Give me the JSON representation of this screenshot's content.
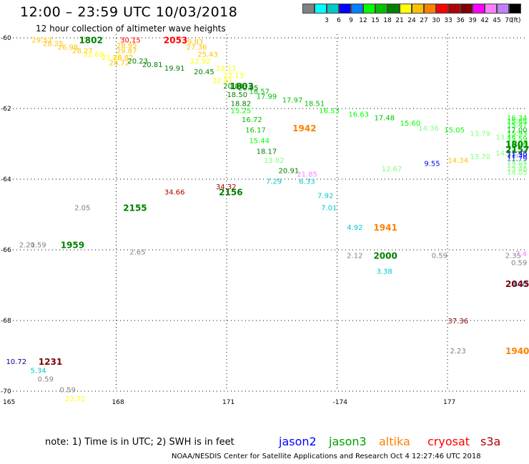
{
  "header": {
    "title": "12:00 – 23:59 UTC 10/03/2018",
    "subtitle": "12 hour collection of altimeter wave heights"
  },
  "scale": {
    "colors": [
      "#808080",
      "#00ffff",
      "#00c8c8",
      "#0000ff",
      "#0080ff",
      "#00ff00",
      "#00c000",
      "#008000",
      "#ffff00",
      "#ffc000",
      "#ff8000",
      "#ff0000",
      "#b00000",
      "#800000",
      "#ff00ff",
      "#ff80ff",
      "#c080ff",
      "#000000"
    ],
    "labels": [
      "",
      "3",
      "6",
      "9",
      "12",
      "15",
      "18",
      "21",
      "24",
      "27",
      "30",
      "33",
      "36",
      "39",
      "42",
      "45",
      "70"
    ],
    "unit": "(ft)"
  },
  "axes": {
    "x_ticks": [
      "165",
      "168",
      "171",
      "-174",
      "177"
    ],
    "y_ticks": [
      "-60",
      "-62",
      "-64",
      "-66",
      "-68",
      "-70"
    ]
  },
  "chart_data": {
    "type": "scatter",
    "plot_range": {
      "lon": [
        165,
        181.5
      ],
      "lat": [
        -70,
        -59.9
      ]
    },
    "grid": true,
    "labels": [
      {
        "lon": 166.0,
        "lat": -60.05,
        "text": "29.57",
        "color": "#ffc000"
      },
      {
        "lon": 166.3,
        "lat": -60.15,
        "text": "28.25",
        "color": "#ffc000"
      },
      {
        "lon": 166.7,
        "lat": -60.25,
        "text": "26.98",
        "color": "#ffc000"
      },
      {
        "lon": 167.1,
        "lat": -60.35,
        "text": "28.27",
        "color": "#ffc000"
      },
      {
        "lon": 167.4,
        "lat": -60.45,
        "text": "22.69",
        "color": "#ffff00"
      },
      {
        "lon": 167.9,
        "lat": -60.55,
        "text": "21.62",
        "color": "#ffff00"
      },
      {
        "lon": 168.1,
        "lat": -60.7,
        "text": "28.72",
        "color": "#ffc000"
      },
      {
        "lon": 168.2,
        "lat": -60.55,
        "text": "26.82",
        "color": "#ffc000"
      },
      {
        "lon": 168.3,
        "lat": -60.35,
        "text": "29.87",
        "color": "#ffc000"
      },
      {
        "lon": 168.3,
        "lat": -60.2,
        "text": "28.95",
        "color": "#ffc000"
      },
      {
        "lon": 168.4,
        "lat": -60.05,
        "text": "30.15",
        "color": "#ff0000"
      },
      {
        "lon": 168.6,
        "lat": -60.65,
        "text": "20.23",
        "color": "#008000"
      },
      {
        "lon": 169.0,
        "lat": -60.75,
        "text": "20.81",
        "color": "#008000"
      },
      {
        "lon": 169.6,
        "lat": -60.85,
        "text": "19.91",
        "color": "#008000"
      },
      {
        "lon": 170.2,
        "lat": -60.25,
        "text": "27.36",
        "color": "#ffc000"
      },
      {
        "lon": 170.1,
        "lat": -60.1,
        "text": "29.83",
        "color": "#ffc000"
      },
      {
        "lon": 170.5,
        "lat": -60.45,
        "text": "25.43",
        "color": "#ffc000"
      },
      {
        "lon": 170.3,
        "lat": -60.65,
        "text": "22.92",
        "color": "#ffff00"
      },
      {
        "lon": 170.4,
        "lat": -60.95,
        "text": "20.45",
        "color": "#008000"
      },
      {
        "lon": 171.0,
        "lat": -60.85,
        "text": "23.11",
        "color": "#ffff00"
      },
      {
        "lon": 170.9,
        "lat": -61.2,
        "text": "22.01",
        "color": "#ffff00"
      },
      {
        "lon": 171.2,
        "lat": -61.05,
        "text": "22.13",
        "color": "#ffff00"
      },
      {
        "lon": 171.2,
        "lat": -61.35,
        "text": "20.81",
        "color": "#008000"
      },
      {
        "lon": 171.6,
        "lat": -61.4,
        "text": "20.95",
        "color": "#008000"
      },
      {
        "lon": 171.9,
        "lat": -61.5,
        "text": "18.57",
        "color": "#00c000"
      },
      {
        "lon": 171.3,
        "lat": -61.6,
        "text": "18.50",
        "color": "#008000"
      },
      {
        "lon": 172.1,
        "lat": -61.65,
        "text": "17.99",
        "color": "#00c000"
      },
      {
        "lon": 172.8,
        "lat": -61.75,
        "text": "17.97",
        "color": "#00c000"
      },
      {
        "lon": 171.4,
        "lat": -61.85,
        "text": "18.82",
        "color": "#008000"
      },
      {
        "lon": 173.4,
        "lat": -61.85,
        "text": "18.51",
        "color": "#00c000"
      },
      {
        "lon": 171.4,
        "lat": -62.05,
        "text": "15.25",
        "color": "#00ff00"
      },
      {
        "lon": 173.8,
        "lat": -62.05,
        "text": "16.53",
        "color": "#00ff00"
      },
      {
        "lon": 174.6,
        "lat": -62.15,
        "text": "16.63",
        "color": "#00ff00"
      },
      {
        "lon": 171.7,
        "lat": -62.3,
        "text": "16.72",
        "color": "#00c000"
      },
      {
        "lon": 175.3,
        "lat": -62.25,
        "text": "17.48",
        "color": "#00c000"
      },
      {
        "lon": 176.0,
        "lat": -62.4,
        "text": "15.60",
        "color": "#00ff00"
      },
      {
        "lon": 171.8,
        "lat": -62.6,
        "text": "16.17",
        "color": "#00c000"
      },
      {
        "lon": 176.5,
        "lat": -62.55,
        "text": "14.36",
        "color": "#80ff80"
      },
      {
        "lon": 177.2,
        "lat": -62.6,
        "text": "15.05",
        "color": "#00ff00"
      },
      {
        "lon": 171.9,
        "lat": -62.9,
        "text": "15.44",
        "color": "#00ff00"
      },
      {
        "lon": 177.9,
        "lat": -62.7,
        "text": "13.79",
        "color": "#80ff80"
      },
      {
        "lon": 178.6,
        "lat": -62.8,
        "text": "13.45",
        "color": "#80ff80"
      },
      {
        "lon": 172.1,
        "lat": -63.2,
        "text": "18.17",
        "color": "#008000"
      },
      {
        "lon": 179.2,
        "lat": -62.95,
        "text": "12.62",
        "color": "#80ff80"
      },
      {
        "lon": 179.8,
        "lat": -63.05,
        "text": "12.60",
        "color": "#80ff80"
      },
      {
        "lon": 172.3,
        "lat": -63.45,
        "text": "13.82",
        "color": "#80ff80"
      },
      {
        "lon": 178.6,
        "lat": -63.25,
        "text": "14.30",
        "color": "#80ff80"
      },
      {
        "lon": 179.2,
        "lat": -63.15,
        "text": "14.37",
        "color": "#80ff80"
      },
      {
        "lon": 177.9,
        "lat": -63.35,
        "text": "13.70",
        "color": "#80ff80"
      },
      {
        "lon": 177.3,
        "lat": -63.45,
        "text": "14.34",
        "color": "#ffc000"
      },
      {
        "lon": 176.6,
        "lat": -63.55,
        "text": "9.55",
        "color": "#0000ff"
      },
      {
        "lon": 175.5,
        "lat": -63.7,
        "text": "12.67",
        "color": "#80ff80"
      },
      {
        "lon": 172.7,
        "lat": -63.75,
        "text": "20.91",
        "color": "#008000"
      },
      {
        "lon": 173.2,
        "lat": -63.85,
        "text": "21.85",
        "color": "#ff80ff"
      },
      {
        "lon": 180.0,
        "lat": -63.05,
        "text": "13.43",
        "color": "#80ff80"
      },
      {
        "lon": 180.5,
        "lat": -63.0,
        "text": "15.05",
        "color": "#00ff00"
      },
      {
        "lon": 180.9,
        "lat": -62.85,
        "text": "15.59",
        "color": "#00ff00"
      },
      {
        "lon": 181.3,
        "lat": -62.7,
        "text": "15.93",
        "color": "#00ff00"
      },
      {
        "lon": 181.8,
        "lat": -62.6,
        "text": "17.00",
        "color": "#00c000"
      },
      {
        "lon": 182.4,
        "lat": -62.45,
        "text": "15.47",
        "color": "#00ff00"
      },
      {
        "lon": 182.9,
        "lat": -62.35,
        "text": "15.85",
        "color": "#00ff00"
      },
      {
        "lon": 183.3,
        "lat": -62.25,
        "text": "16.34",
        "color": "#00ff00"
      },
      {
        "lon": 180.2,
        "lat": -63.25,
        "text": "11.48",
        "color": "#0000ff"
      },
      {
        "lon": 180.6,
        "lat": -63.3,
        "text": "11.30",
        "color": "#0000ff"
      },
      {
        "lon": 181.0,
        "lat": -63.4,
        "text": "11.79",
        "color": "#0000ff"
      },
      {
        "lon": 181.5,
        "lat": -63.5,
        "text": "13.05",
        "color": "#80ff80"
      },
      {
        "lon": 182.1,
        "lat": -63.6,
        "text": "12.92",
        "color": "#80ff80"
      },
      {
        "lon": 182.6,
        "lat": -63.7,
        "text": "13.46",
        "color": "#80ff80"
      },
      {
        "lon": 183.1,
        "lat": -63.8,
        "text": "14.05",
        "color": "#80ff80"
      },
      {
        "lon": 172.3,
        "lat": -64.05,
        "text": "7.29",
        "color": "#00c8c8"
      },
      {
        "lon": 173.2,
        "lat": -64.05,
        "text": "6.33",
        "color": "#00c8c8"
      },
      {
        "lon": 171.0,
        "lat": -64.2,
        "text": "34.32",
        "color": "#b00000"
      },
      {
        "lon": 169.6,
        "lat": -64.35,
        "text": "34.66",
        "color": "#b00000"
      },
      {
        "lon": 173.7,
        "lat": -64.45,
        "text": "7.92",
        "color": "#00c8c8"
      },
      {
        "lon": 173.8,
        "lat": -64.8,
        "text": "7.01",
        "color": "#00c8c8"
      },
      {
        "lon": 167.1,
        "lat": -64.8,
        "text": "2.05",
        "color": "#808080"
      },
      {
        "lon": 174.5,
        "lat": -65.35,
        "text": "4.92",
        "color": "#00c8c8"
      },
      {
        "lon": 165.6,
        "lat": -65.85,
        "text": "2.21",
        "color": "#808080"
      },
      {
        "lon": 165.9,
        "lat": -65.85,
        "text": "0.59",
        "color": "#808080"
      },
      {
        "lon": 168.6,
        "lat": -66.05,
        "text": "2.65",
        "color": "#808080"
      },
      {
        "lon": 174.5,
        "lat": -66.15,
        "text": "2.12",
        "color": "#808080"
      },
      {
        "lon": 176.8,
        "lat": -66.15,
        "text": "0.59",
        "color": "#808080"
      },
      {
        "lon": 178.8,
        "lat": -66.15,
        "text": "2.35",
        "color": "#808080"
      },
      {
        "lon": 180.5,
        "lat": -66.1,
        "text": "7.4",
        "color": "#ff80ff"
      },
      {
        "lon": 180.2,
        "lat": -66.35,
        "text": "0.59",
        "color": "#808080"
      },
      {
        "lon": 175.3,
        "lat": -66.6,
        "text": "3.38",
        "color": "#00c8c8"
      },
      {
        "lon": 179.1,
        "lat": -66.95,
        "text": "8.00",
        "color": "#0080ff"
      },
      {
        "lon": 177.3,
        "lat": -68.0,
        "text": "37.36",
        "color": "#800000"
      },
      {
        "lon": 177.3,
        "lat": -68.85,
        "text": "2.23",
        "color": "#808080"
      },
      {
        "lon": 165.3,
        "lat": -69.15,
        "text": "10.72",
        "color": "#000080"
      },
      {
        "lon": 165.9,
        "lat": -69.4,
        "text": "5.34",
        "color": "#00c8c8"
      },
      {
        "lon": 166.1,
        "lat": -69.65,
        "text": "0.59",
        "color": "#808080"
      },
      {
        "lon": 166.7,
        "lat": -69.95,
        "text": "0.59",
        "color": "#808080"
      },
      {
        "lon": 166.9,
        "lat": -70.2,
        "text": "23.72",
        "color": "#ffff00"
      }
    ],
    "times": [
      {
        "lon": 167.3,
        "lat": -60.05,
        "text": "1802",
        "color": "#008000"
      },
      {
        "lon": 169.6,
        "lat": -60.05,
        "text": "2053",
        "color": "#ff0000"
      },
      {
        "lon": 171.4,
        "lat": -61.35,
        "text": "1803",
        "color": "#008000"
      },
      {
        "lon": 173.1,
        "lat": -62.55,
        "text": "1942",
        "color": "#ff8000"
      },
      {
        "lon": 180.0,
        "lat": -63.0,
        "text": "1801",
        "color": "#008000"
      },
      {
        "lon": 180.7,
        "lat": -63.15,
        "text": "2157",
        "color": "#008000"
      },
      {
        "lon": 171.1,
        "lat": -64.35,
        "text": "2156",
        "color": "#008000"
      },
      {
        "lon": 168.5,
        "lat": -64.8,
        "text": "2155",
        "color": "#008000"
      },
      {
        "lon": 175.3,
        "lat": -65.35,
        "text": "1941",
        "color": "#ff8000"
      },
      {
        "lon": 166.8,
        "lat": -65.85,
        "text": "1959",
        "color": "#008000"
      },
      {
        "lon": 175.3,
        "lat": -66.15,
        "text": "2000",
        "color": "#008000"
      },
      {
        "lon": 181.3,
        "lat": -66.95,
        "text": "2045",
        "color": "#800000"
      },
      {
        "lon": 166.2,
        "lat": -69.15,
        "text": "1231",
        "color": "#800000"
      },
      {
        "lon": 179.1,
        "lat": -68.85,
        "text": "1940",
        "color": "#ff8000"
      }
    ]
  },
  "footer": {
    "note": "note: 1) Time is in UTC; 2) SWH is in feet",
    "missions": [
      {
        "name": "jason2",
        "color": "#0000ff"
      },
      {
        "name": "jason3",
        "color": "#00a000"
      },
      {
        "name": "altika",
        "color": "#ff8000"
      },
      {
        "name": "cryosat",
        "color": "#ff0000"
      },
      {
        "name": "s3a",
        "color": "#b00000"
      }
    ],
    "credit": "NOAA/NESDIS Center for Satellite Applications and Research   Oct  4 12:27:46 UTC 2018"
  }
}
